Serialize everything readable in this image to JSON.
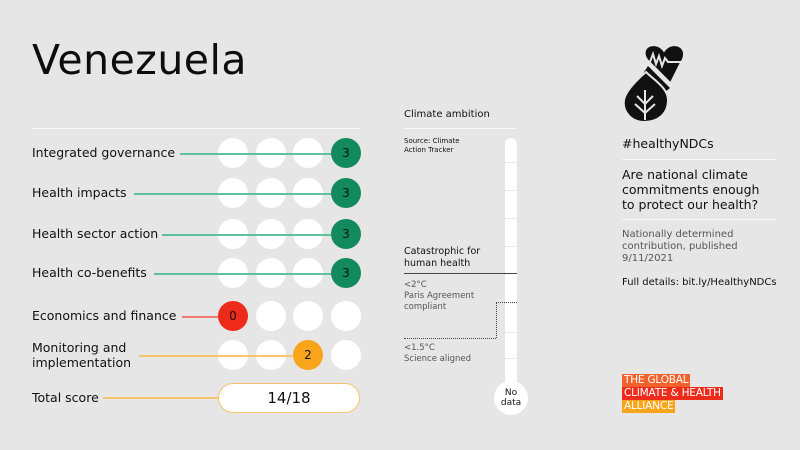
{
  "header": {
    "country": "Venezuela"
  },
  "scores": {
    "max_dots": 4,
    "rows": [
      {
        "label": "Integrated governance",
        "score": "3",
        "position": 3,
        "color": "#138a5e",
        "line_color": "#5fc09b"
      },
      {
        "label": "Health impacts",
        "score": "3",
        "position": 3,
        "color": "#138a5e",
        "line_color": "#5fc09b"
      },
      {
        "label": "Health sector action",
        "score": "3",
        "position": 3,
        "color": "#138a5e",
        "line_color": "#5fc09b"
      },
      {
        "label": "Health co-benefits",
        "score": "3",
        "position": 3,
        "color": "#138a5e",
        "line_color": "#5fc09b"
      },
      {
        "label": "Economics and finance",
        "score": "0",
        "position": 0,
        "color": "#ee2a1b",
        "line_color": "#f07a6e"
      },
      {
        "label": "Monitoring and implementation",
        "label_line1": "Monitoring and",
        "label_line2": "implementation",
        "score": "2",
        "position": 2,
        "color": "#f8a51b",
        "line_color": "#f5c46c"
      }
    ],
    "total": {
      "label": "Total score",
      "value": "14/18",
      "line_color": "#f5c46c"
    }
  },
  "climate_ambition": {
    "title": "Climate ambition",
    "source": "Source: Climate Action Tracker",
    "source_line1": "Source: Climate",
    "source_line2": "Action Tracker",
    "catastrophic_line1": "Catastrophic for",
    "catastrophic_line2": "human health",
    "paris_line1": "<2°C",
    "paris_line2": "Paris Agreement",
    "paris_line3": "compliant",
    "science_line1": "<1.5°C",
    "science_line2": "Science aligned",
    "rating_line1": "No",
    "rating_line2": "data"
  },
  "sidebar": {
    "icon": "heart-leaf-icon",
    "hashtag": "#healthyNDCs",
    "question_line1": "Are national climate",
    "question_line2": "commitments enough",
    "question_line3": "to protect our health?",
    "ndc_line1": "Nationally determined",
    "ndc_line2": "contribution, published",
    "ndc_line3": "9/11/2021",
    "full_details": "Full details: bit.ly/HealthyNDCs"
  },
  "logo": {
    "line1": "THE GLOBAL",
    "line2": "CLIMATE & HEALTH",
    "line3": "ALLIANCE",
    "colors": [
      "#f3622a",
      "#ee2a1b",
      "#f8a51b"
    ]
  }
}
